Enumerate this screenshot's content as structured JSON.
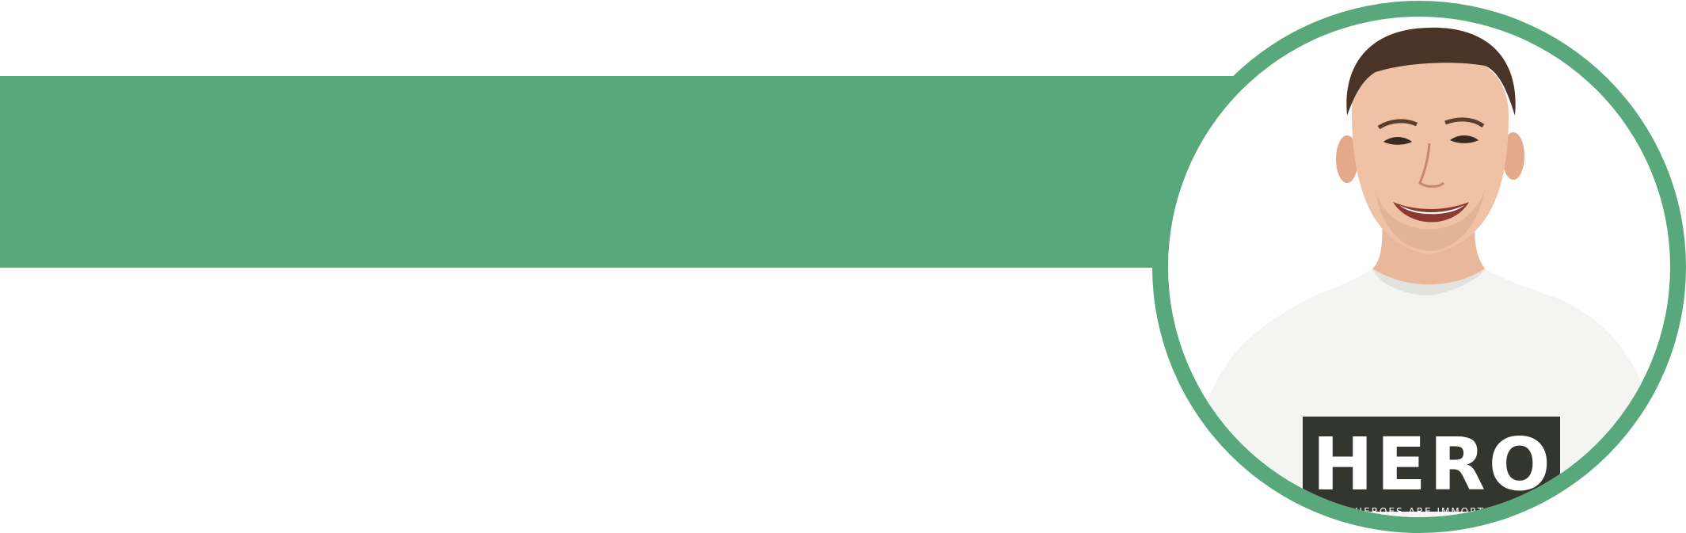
{
  "banner": {
    "bar_color": "#58a87b",
    "background": "#ffffff"
  },
  "portrait": {
    "ring_color": "#58a87b",
    "subject": "smiling-man-portrait",
    "shirt_print": {
      "title": "HERO",
      "tagline": "HEROES ARE IMMORTAL"
    }
  }
}
